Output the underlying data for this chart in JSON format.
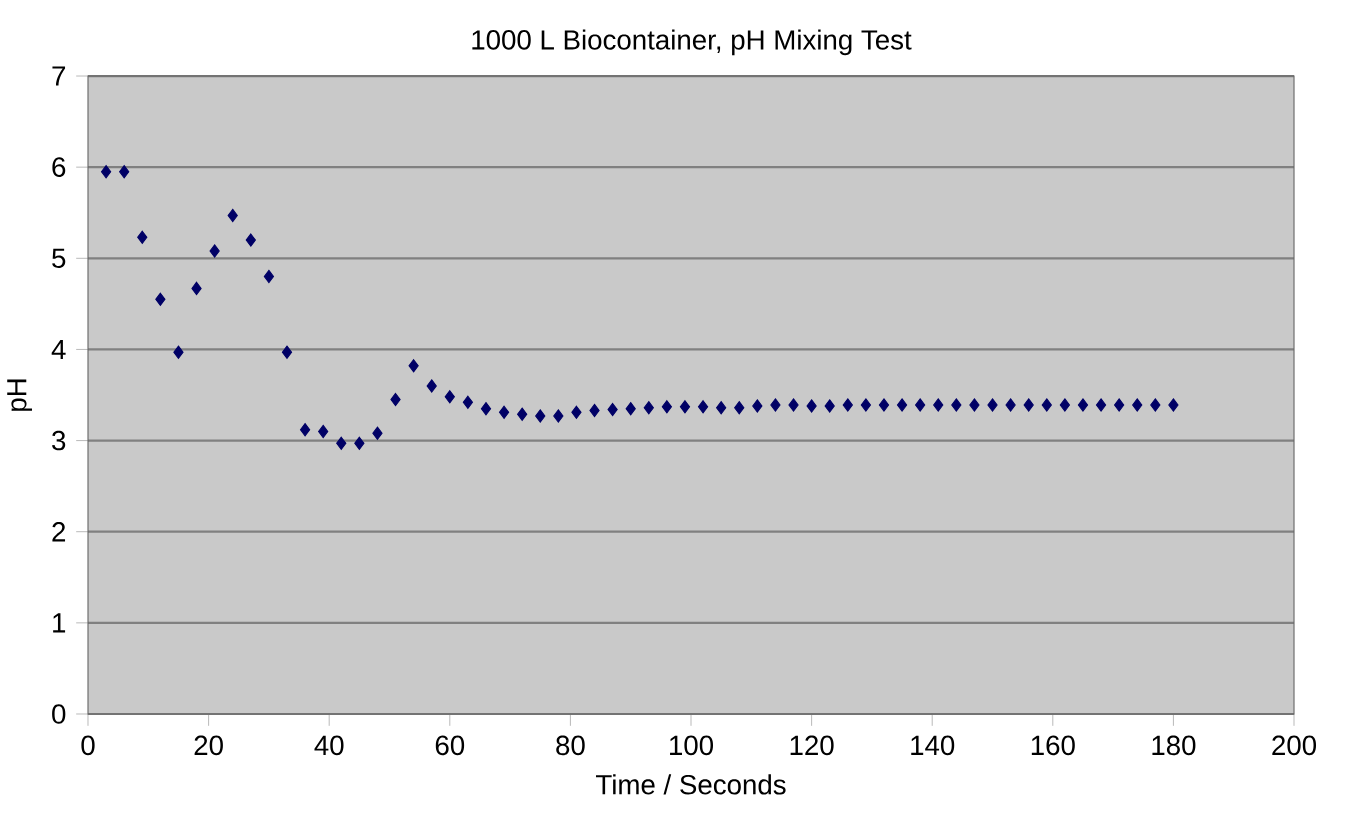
{
  "chart_data": {
    "type": "scatter",
    "title": "1000 L Biocontainer, pH Mixing Test",
    "xlabel": "Time / Seconds",
    "ylabel": "pH",
    "x": [
      3,
      6,
      9,
      12,
      15,
      18,
      21,
      24,
      27,
      30,
      33,
      36,
      39,
      42,
      45,
      48,
      51,
      54,
      57,
      60,
      63,
      66,
      69,
      72,
      75,
      78,
      81,
      84,
      87,
      90,
      93,
      96,
      99,
      102,
      105,
      108,
      111,
      114,
      117,
      120,
      123,
      126,
      129,
      132,
      135,
      138,
      141,
      144,
      147,
      150,
      153,
      156,
      159,
      162,
      165,
      168,
      171,
      174,
      177,
      180
    ],
    "values": [
      5.95,
      5.95,
      5.23,
      4.55,
      3.97,
      4.67,
      5.08,
      5.47,
      5.2,
      4.8,
      3.97,
      3.12,
      3.1,
      2.97,
      2.97,
      3.08,
      3.45,
      3.82,
      3.6,
      3.48,
      3.42,
      3.35,
      3.31,
      3.29,
      3.27,
      3.27,
      3.31,
      3.33,
      3.34,
      3.35,
      3.36,
      3.37,
      3.37,
      3.37,
      3.36,
      3.36,
      3.38,
      3.39,
      3.39,
      3.38,
      3.38,
      3.39,
      3.39,
      3.39,
      3.39,
      3.39,
      3.39,
      3.39,
      3.39,
      3.39,
      3.39,
      3.39,
      3.39,
      3.39,
      3.39,
      3.39,
      3.39,
      3.39,
      3.39,
      3.39
    ],
    "color": "#000066",
    "marker": "diamond",
    "grid": "y",
    "xlim": [
      0,
      200
    ],
    "xticks": [
      0,
      20,
      40,
      60,
      80,
      100,
      120,
      140,
      160,
      180,
      200
    ],
    "ylim": [
      0,
      7
    ],
    "yticks": [
      0,
      1,
      2,
      3,
      4,
      5,
      6,
      7
    ]
  }
}
